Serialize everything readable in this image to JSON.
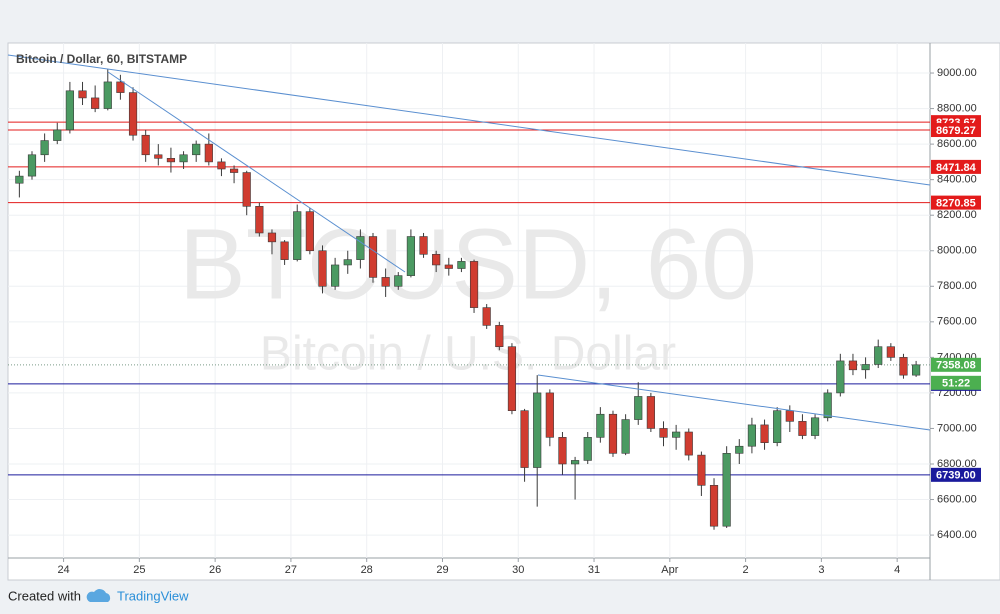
{
  "chart_data": {
    "type": "candlestick",
    "title": "Bitcoin / Dollar, 60, BITSTAMP",
    "watermark": [
      "BTCUSD, 60",
      "Bitcoin / U.S. Dollar"
    ],
    "open": [
      8380,
      8420,
      8540,
      8620,
      8680,
      8900,
      8860,
      8800,
      8950,
      8890,
      8650,
      8540,
      8520,
      8500,
      8540,
      8600,
      8500,
      8460,
      8440,
      8250,
      8100,
      8050,
      7950,
      8220,
      8000,
      7800,
      7920,
      7950,
      8080,
      7850,
      7800,
      7860,
      8080,
      7980,
      7920,
      7900,
      7940,
      7680,
      7580,
      7460,
      7100,
      6780,
      7200,
      6950,
      6800,
      6820,
      6950,
      7080,
      6860,
      7050,
      7180,
      7000,
      6950,
      6980,
      6850,
      6680,
      6450,
      6860,
      6900,
      7020,
      6920,
      7100,
      7040,
      6960,
      7060,
      7200,
      7380,
      7330,
      7360,
      7460,
      7400,
      7300
    ],
    "high": [
      8450,
      8560,
      8660,
      8720,
      8950,
      8950,
      8930,
      9020,
      8990,
      8920,
      8680,
      8600,
      8580,
      8560,
      8620,
      8660,
      8520,
      8480,
      8450,
      8270,
      8120,
      8060,
      8260,
      8240,
      8030,
      7960,
      8000,
      8120,
      8100,
      7900,
      7880,
      8120,
      8100,
      8000,
      7960,
      7960,
      7950,
      7700,
      7600,
      7480,
      7110,
      7300,
      7220,
      6980,
      6840,
      6980,
      7120,
      7100,
      7080,
      7260,
      7200,
      7040,
      7020,
      7000,
      6870,
      6720,
      6900,
      6940,
      7060,
      7050,
      7120,
      7130,
      7080,
      7080,
      7220,
      7420,
      7420,
      7400,
      7500,
      7480,
      7420,
      7380
    ],
    "low": [
      8300,
      8400,
      8500,
      8600,
      8660,
      8820,
      8780,
      8790,
      8850,
      8620,
      8500,
      8480,
      8440,
      8460,
      8500,
      8480,
      8420,
      8380,
      8200,
      8080,
      7980,
      7920,
      7940,
      7980,
      7760,
      7780,
      7870,
      7900,
      7820,
      7740,
      7780,
      7850,
      7960,
      7880,
      7860,
      7880,
      7650,
      7560,
      7440,
      7080,
      6700,
      6560,
      6900,
      6740,
      6600,
      6800,
      6920,
      6840,
      6850,
      7020,
      6980,
      6900,
      6880,
      6820,
      6620,
      6430,
      6440,
      6800,
      6860,
      6880,
      6900,
      6980,
      6940,
      6940,
      7040,
      7180,
      7300,
      7280,
      7340,
      7380,
      7280,
      7290
    ],
    "close": [
      8420,
      8540,
      8620,
      8680,
      8900,
      8860,
      8800,
      8950,
      8890,
      8650,
      8540,
      8520,
      8500,
      8540,
      8600,
      8500,
      8460,
      8440,
      8250,
      8100,
      8050,
      7950,
      8220,
      8000,
      7800,
      7920,
      7950,
      8080,
      7850,
      7800,
      7860,
      8080,
      7980,
      7920,
      7900,
      7940,
      7680,
      7580,
      7460,
      7100,
      6780,
      7200,
      6950,
      6800,
      6820,
      6950,
      7080,
      6860,
      7050,
      7180,
      7000,
      6950,
      6980,
      6850,
      6680,
      6450,
      6860,
      6900,
      7020,
      6920,
      7100,
      7040,
      6960,
      7060,
      7200,
      7380,
      7330,
      7360,
      7460,
      7400,
      7300,
      7358.08
    ],
    "up_color": "#4b9a62",
    "down_color": "#d03c30",
    "wick_color": "#3a3a3a",
    "xlim": [
      -0.4,
      72.6
    ],
    "xticks": [
      {
        "value": 4,
        "label": "24"
      },
      {
        "value": 10,
        "label": "25"
      },
      {
        "value": 16,
        "label": "26"
      },
      {
        "value": 22,
        "label": "27"
      },
      {
        "value": 28,
        "label": "28"
      },
      {
        "value": 34,
        "label": "29"
      },
      {
        "value": 40,
        "label": "30"
      },
      {
        "value": 46,
        "label": "31"
      },
      {
        "value": 52,
        "label": "Apr"
      },
      {
        "value": 58,
        "label": "2"
      },
      {
        "value": 64,
        "label": "3"
      },
      {
        "value": 70,
        "label": "4"
      }
    ],
    "ylim": [
      6271,
      9169
    ],
    "yticks": [
      {
        "value": 6400,
        "label": "6400.00"
      },
      {
        "value": 6600,
        "label": "6600.00"
      },
      {
        "value": 6800,
        "label": "6800.00"
      },
      {
        "value": 7000,
        "label": "7000.00"
      },
      {
        "value": 7200,
        "label": "7200.00"
      },
      {
        "value": 7400,
        "label": "7400.00"
      },
      {
        "value": 7600,
        "label": "7600.00"
      },
      {
        "value": 7800,
        "label": "7800.00"
      },
      {
        "value": 8000,
        "label": "8000.00"
      },
      {
        "value": 8200,
        "label": "8200.00"
      },
      {
        "value": 8400,
        "label": "8400.00"
      },
      {
        "value": 8600,
        "label": "8600.00"
      },
      {
        "value": 8800,
        "label": "8800.00"
      },
      {
        "value": 9000,
        "label": "9000.00"
      }
    ],
    "grid": true,
    "levels": [
      {
        "value": 8723.67,
        "color": "#e31b1b"
      },
      {
        "value": 8679.27,
        "color": "#e31b1b"
      },
      {
        "value": 8471.84,
        "color": "#e31b1b"
      },
      {
        "value": 8270.85,
        "color": "#e31b1b"
      },
      {
        "value": 7250.82,
        "color": "#1a1a9c"
      },
      {
        "value": {
          "value": 6739,
          "label": "6739.00"
        },
        "color": "#1a1a9c"
      }
    ],
    "last_color": "#4caf50",
    "countdown": "51:22"
  },
  "footer": {
    "prefix": "Created with",
    "brand": "TradingView"
  }
}
